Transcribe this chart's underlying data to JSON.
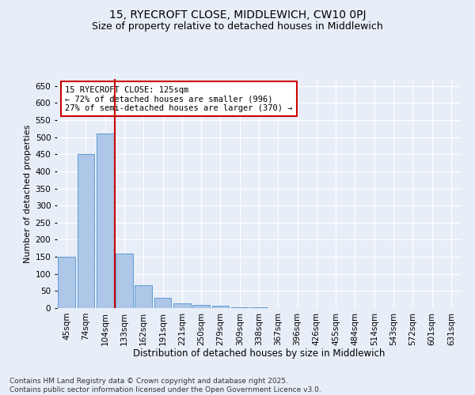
{
  "title": "15, RYECROFT CLOSE, MIDDLEWICH, CW10 0PJ",
  "subtitle": "Size of property relative to detached houses in Middlewich",
  "xlabel": "Distribution of detached houses by size in Middlewich",
  "ylabel": "Number of detached properties",
  "categories": [
    "45sqm",
    "74sqm",
    "104sqm",
    "133sqm",
    "162sqm",
    "191sqm",
    "221sqm",
    "250sqm",
    "279sqm",
    "309sqm",
    "338sqm",
    "367sqm",
    "396sqm",
    "426sqm",
    "455sqm",
    "484sqm",
    "514sqm",
    "543sqm",
    "572sqm",
    "601sqm",
    "631sqm"
  ],
  "values": [
    150,
    450,
    510,
    160,
    68,
    30,
    13,
    10,
    8,
    2,
    2,
    0,
    0,
    0,
    0,
    0,
    0,
    0,
    0,
    0,
    0
  ],
  "bar_color": "#aec6e8",
  "bar_edge_color": "#5b9bd5",
  "vline_pos": 2.5,
  "vline_color": "#cc0000",
  "annotation_text": "15 RYECROFT CLOSE: 125sqm\n← 72% of detached houses are smaller (996)\n27% of semi-detached houses are larger (370) →",
  "annotation_box_color": "#ffffff",
  "annotation_box_edge": "#cc0000",
  "ylim": [
    0,
    670
  ],
  "yticks": [
    0,
    50,
    100,
    150,
    200,
    250,
    300,
    350,
    400,
    450,
    500,
    550,
    600,
    650
  ],
  "background_color": "#e8eef7",
  "footer_text": "Contains HM Land Registry data © Crown copyright and database right 2025.\nContains public sector information licensed under the Open Government Licence v3.0.",
  "title_fontsize": 10,
  "subtitle_fontsize": 9,
  "xlabel_fontsize": 8.5,
  "ylabel_fontsize": 8,
  "tick_fontsize": 7.5,
  "annotation_fontsize": 7.5,
  "footer_fontsize": 6.5
}
